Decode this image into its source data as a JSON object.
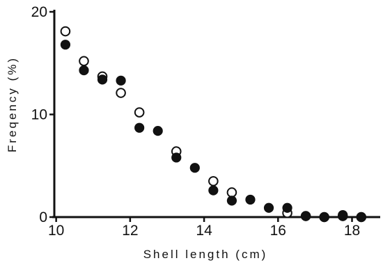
{
  "chart_data": {
    "type": "scatter",
    "title": "",
    "xlabel": "Shell  length  (cm)",
    "ylabel": "Freqency (%)",
    "xlim": [
      9.95,
      18.8
    ],
    "ylim": [
      0,
      20
    ],
    "x_ticks": [
      10,
      12,
      14,
      16,
      18
    ],
    "y_ticks": [
      0,
      10,
      20
    ],
    "grid": false,
    "legend": "none",
    "series": [
      {
        "marker": "open-circle",
        "points": [
          [
            10.25,
            18.1
          ],
          [
            10.75,
            15.2
          ],
          [
            11.25,
            13.7
          ],
          [
            11.75,
            12.1
          ],
          [
            12.25,
            10.2
          ],
          [
            13.25,
            6.4
          ],
          [
            14.25,
            3.5
          ],
          [
            14.75,
            2.4
          ],
          [
            16.25,
            0.4
          ],
          [
            16.75,
            0.1
          ],
          [
            17.25,
            0.0
          ],
          [
            17.75,
            0.1
          ],
          [
            18.25,
            0.0
          ]
        ]
      },
      {
        "marker": "filled-circle",
        "points": [
          [
            10.25,
            16.8
          ],
          [
            10.75,
            14.3
          ],
          [
            11.25,
            13.4
          ],
          [
            11.75,
            13.3
          ],
          [
            12.25,
            8.7
          ],
          [
            12.75,
            8.4
          ],
          [
            13.25,
            5.8
          ],
          [
            13.75,
            4.8
          ],
          [
            14.25,
            2.6
          ],
          [
            14.75,
            1.6
          ],
          [
            15.25,
            1.7
          ],
          [
            15.75,
            0.9
          ],
          [
            16.25,
            0.9
          ],
          [
            16.75,
            0.1
          ],
          [
            17.25,
            0.0
          ],
          [
            17.75,
            0.2
          ],
          [
            18.25,
            0.0
          ]
        ]
      }
    ],
    "colors": {
      "ink": "#111111",
      "open_fill": "#ffffff"
    }
  }
}
